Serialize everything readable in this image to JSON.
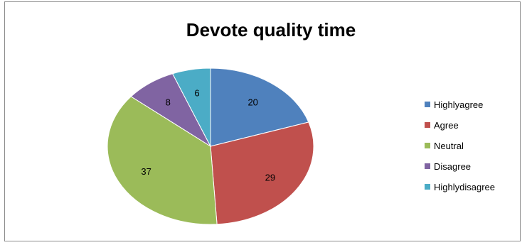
{
  "chart_data": {
    "type": "pie",
    "title": "Devote quality time",
    "legend_position": "right",
    "categories": [
      "Highlyagree",
      "Agree",
      "Neutral",
      "Disagree",
      "Highlydisagree"
    ],
    "values": [
      20,
      29,
      37,
      8,
      6
    ],
    "colors": [
      "#4f81bd",
      "#c0504d",
      "#9bbb59",
      "#8064a2",
      "#4bacc6"
    ]
  }
}
